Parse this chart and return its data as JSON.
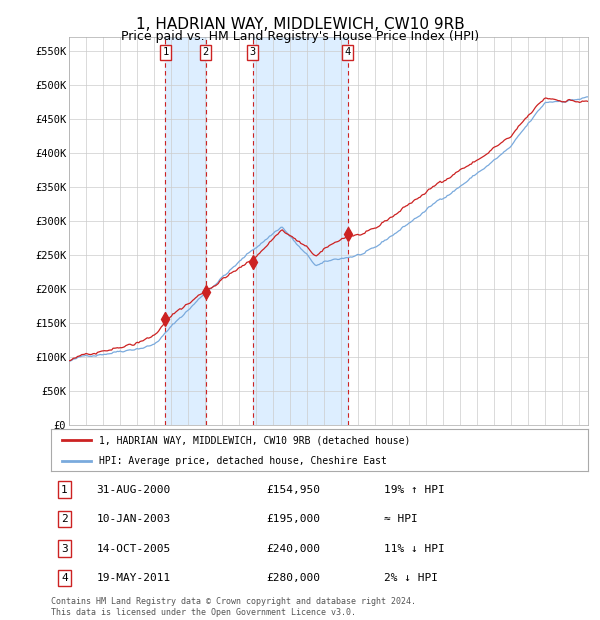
{
  "title": "1, HADRIAN WAY, MIDDLEWICH, CW10 9RB",
  "subtitle": "Price paid vs. HM Land Registry's House Price Index (HPI)",
  "title_fontsize": 11,
  "subtitle_fontsize": 9,
  "ylim": [
    0,
    570000
  ],
  "yticks": [
    0,
    50000,
    100000,
    150000,
    200000,
    250000,
    300000,
    350000,
    400000,
    450000,
    500000,
    550000
  ],
  "ytick_labels": [
    "£0",
    "£50K",
    "£100K",
    "£150K",
    "£200K",
    "£250K",
    "£300K",
    "£350K",
    "£400K",
    "£450K",
    "£500K",
    "£550K"
  ],
  "sale_date_floats": [
    2000.667,
    2003.033,
    2005.792,
    2011.375
  ],
  "sale_prices": [
    154950,
    195000,
    240000,
    280000
  ],
  "sale_labels": [
    "1",
    "2",
    "3",
    "4"
  ],
  "hpi_line_color": "#7aaadd",
  "property_line_color": "#cc2222",
  "sale_marker_color": "#cc2222",
  "vline_color": "#cc2222",
  "shade_color": "#ddeeff",
  "legend_entries": [
    "1, HADRIAN WAY, MIDDLEWICH, CW10 9RB (detached house)",
    "HPI: Average price, detached house, Cheshire East"
  ],
  "table_rows": [
    {
      "num": "1",
      "date": "31-AUG-2000",
      "price": "£154,950",
      "hpi": "19% ↑ HPI"
    },
    {
      "num": "2",
      "date": "10-JAN-2003",
      "price": "£195,000",
      "hpi": "≈ HPI"
    },
    {
      "num": "3",
      "date": "14-OCT-2005",
      "price": "£240,000",
      "hpi": "11% ↓ HPI"
    },
    {
      "num": "4",
      "date": "19-MAY-2011",
      "price": "£280,000",
      "hpi": "2% ↓ HPI"
    }
  ],
  "footer": "Contains HM Land Registry data © Crown copyright and database right 2024.\nThis data is licensed under the Open Government Licence v3.0.",
  "background_color": "#ffffff",
  "grid_color": "#cccccc",
  "hpi_seed": 42,
  "prop_seed": 7
}
